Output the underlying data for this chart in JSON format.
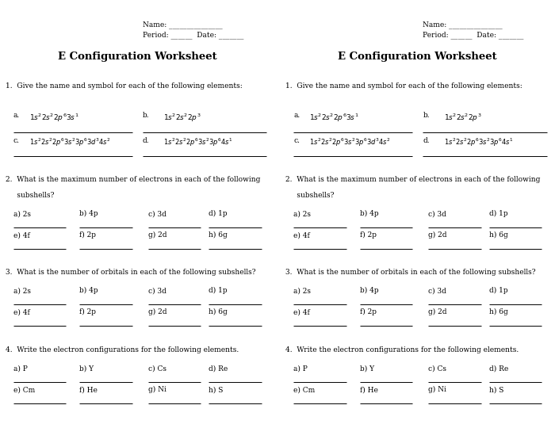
{
  "title": "E Configuration Worksheet",
  "bg_color": "#ffffff",
  "text_color": "#000000",
  "q1_prompt": "1.  Give the name and symbol for each of the following elements:",
  "q1_a": "a.",
  "q1_a_formula": "$1s^22s^22p^63s^1$",
  "q1_b": "b.",
  "q1_b_formula": "$1s^22s^22p^3$",
  "q1_c": "c.",
  "q1_c_formula": "$1s^22s^22p^63s^23p^63d^34s^2$",
  "q1_d": "d.",
  "q1_d_formula": "$1s^22s^22p^63s^23p^64s^1$",
  "q2_prompt1": "2.  What is the maximum number of electrons in each of the following",
  "q2_prompt2": "     subshells?",
  "q3_prompt": "3.  What is the number of orbitals in each of the following subshells?",
  "q4_prompt": "4.  Write the electron configurations for the following elements.",
  "q2_items_row1": [
    "a) 2s",
    "b) 4p",
    "c) 3d",
    "d) 1p"
  ],
  "q2_items_row2": [
    "e) 4f",
    "f) 2p",
    "g) 2d",
    "h) 6g"
  ],
  "q3_items_row1": [
    "a) 2s",
    "b) 4p",
    "c) 3d",
    "d) 1p"
  ],
  "q3_items_row2": [
    "e) 4f",
    "f) 2p",
    "g) 2d",
    "h) 6g"
  ],
  "q4_items_row1": [
    "a) P",
    "b) Y",
    "c) Cs",
    "d) Re"
  ],
  "q4_items_row2": [
    "e) Cm",
    "f) He",
    "g) Ni",
    "h) S"
  ],
  "name_label": "Name:",
  "period_label": "Period:",
  "date_label": "Date:",
  "name_line": "_______________",
  "period_line": "______",
  "date_line": "_______",
  "fs_body": 7.0,
  "fs_title": 9.5,
  "fs_formula": 6.5
}
